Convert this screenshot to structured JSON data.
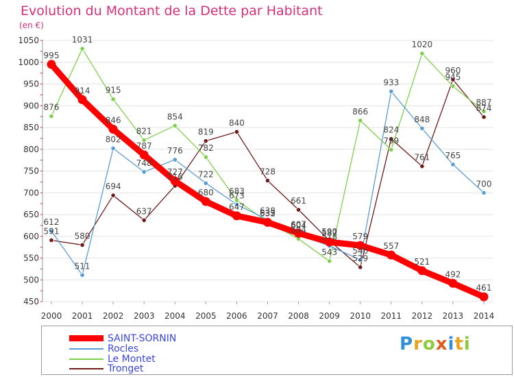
{
  "chart_data": {
    "type": "line",
    "title": "Evolution du Montant de la Dette par Habitant",
    "subtitle": "(en €)",
    "x": [
      "2000",
      "2001",
      "2002",
      "2003",
      "2004",
      "2005",
      "2006",
      "2007",
      "2008",
      "2009",
      "2010",
      "2011",
      "2012",
      "2013",
      "2014"
    ],
    "ylim": [
      450,
      1050
    ],
    "yticks": [
      450,
      500,
      550,
      600,
      650,
      700,
      750,
      800,
      850,
      900,
      950,
      1000,
      1050
    ],
    "grid": "horizontal",
    "legend_position": "bottom-left",
    "series": [
      {
        "name": "SAINT-SORNIN",
        "color": "#ff0000",
        "values": [
          995,
          914,
          846,
          787,
          727,
          680,
          647,
          632,
          607,
          587,
          579,
          557,
          521,
          492,
          461
        ]
      },
      {
        "name": "Rocles",
        "color": "#5b9bd5",
        "values": [
          612,
          511,
          802,
          748,
          776,
          722,
          673,
          638,
          604,
          578,
          546,
          933,
          848,
          765,
          700
        ]
      },
      {
        "name": "Le Montet",
        "color": "#7ed04b",
        "values": [
          876,
          1031,
          915,
          821,
          854,
          782,
          683,
          633,
          594,
          543,
          866,
          799,
          1020,
          945,
          887
        ]
      },
      {
        "name": "Tronget",
        "color": "#6e1a1a",
        "values": [
          591,
          580,
          694,
          637,
          716,
          819,
          840,
          728,
          661,
          590,
          529,
          824,
          761,
          960,
          874
        ]
      }
    ]
  },
  "logo": {
    "text": "Proxiti"
  }
}
